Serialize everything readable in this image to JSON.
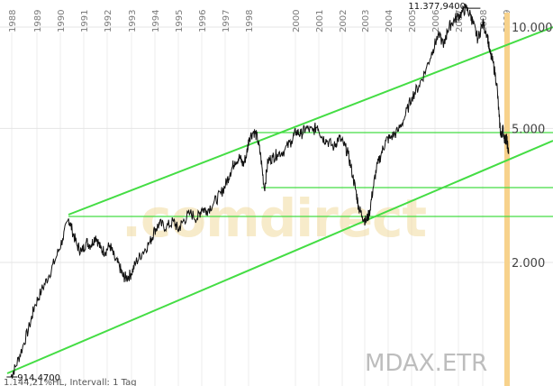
{
  "chart_data": {
    "type": "line",
    "symbol": "MDAX.ETR",
    "watermark": ".comdirect",
    "footer": "1.144,21%HL, Intervall: 1 Tag",
    "x_years": [
      "1988",
      "1989",
      "1990",
      "1991",
      "1992",
      "1993",
      "1994",
      "1995",
      "1996",
      "1997",
      "1998",
      "2000",
      "2001",
      "2002",
      "2003",
      "2004",
      "2005",
      "2006",
      "2007",
      "2008",
      "2009"
    ],
    "y_ticks": [
      {
        "value": 10000,
        "label": "10.000"
      },
      {
        "value": 5000,
        "label": "5.000"
      },
      {
        "value": 2000,
        "label": "2.000"
      }
    ],
    "y_scale": "log",
    "annotations": [
      {
        "label": "11.377,9400",
        "x": 2007.6,
        "y": 11378
      },
      {
        "label": "914,4700",
        "x": 1988.05,
        "y": 914
      }
    ],
    "series": [
      {
        "x": [
          1988.0,
          1988.2,
          1988.5,
          1988.8,
          1989.0,
          1989.3,
          1989.6,
          1989.9,
          1990.2,
          1990.45,
          1990.6,
          1990.8,
          1991.0,
          1991.2,
          1991.4,
          1991.6,
          1991.8,
          1992.0,
          1992.2,
          1992.4,
          1992.6,
          1992.75,
          1992.9,
          1993.1,
          1993.3,
          1993.6,
          1993.9,
          1994.1,
          1994.3,
          1994.6,
          1994.9,
          1995.1,
          1995.3,
          1995.6,
          1995.9,
          1996.1,
          1996.3,
          1996.6,
          1996.9,
          1997.1,
          1997.3,
          1997.5,
          1997.7,
          1997.85,
          1998.0,
          1998.1,
          1998.3,
          1998.45,
          1998.6,
          1998.75,
          1998.9,
          1999.1,
          1999.3,
          1999.6,
          1999.9,
          2000.1,
          2000.3,
          2000.5,
          2000.8,
          2001.0,
          2001.2,
          2001.4,
          2001.7,
          2001.9,
          2002.1,
          2002.3,
          2002.5,
          2002.65,
          2002.75,
          2002.9,
          2003.05,
          2003.2,
          2003.35,
          2003.5,
          2003.7,
          2003.9,
          2004.1,
          2004.4,
          2004.7,
          2005.0,
          2005.3,
          2005.6,
          2005.9,
          2006.1,
          2006.4,
          2006.5,
          2006.7,
          2006.9,
          2007.1,
          2007.3,
          2007.5,
          2007.6,
          2007.8,
          2008.0,
          2008.2,
          2008.3,
          2008.45,
          2008.6,
          2008.7,
          2008.78,
          2008.85,
          2008.95,
          2009.0,
          2009.05,
          2009.1
        ],
        "y": [
          914,
          980,
          1120,
          1300,
          1480,
          1650,
          1820,
          2050,
          2350,
          2700,
          2500,
          2250,
          2150,
          2300,
          2250,
          2400,
          2200,
          2150,
          2250,
          2050,
          1950,
          1820,
          1800,
          1850,
          2000,
          2150,
          2300,
          2500,
          2600,
          2550,
          2650,
          2500,
          2650,
          2800,
          2700,
          2900,
          2850,
          3000,
          3200,
          3400,
          3700,
          4000,
          4100,
          3900,
          4200,
          4700,
          4900,
          4700,
          4100,
          3300,
          4000,
          4100,
          4200,
          4300,
          4600,
          4900,
          4800,
          5000,
          4900,
          5100,
          4700,
          4600,
          4400,
          4700,
          4500,
          4200,
          3600,
          3200,
          2900,
          2750,
          2650,
          2800,
          3300,
          3800,
          4200,
          4600,
          4700,
          4900,
          5400,
          6200,
          6700,
          7500,
          8600,
          9400,
          8900,
          9800,
          10300,
          10700,
          11000,
          11378,
          10800,
          10200,
          9200,
          10300,
          9500,
          8400,
          7800,
          6800,
          5400,
          4700,
          5000,
          4600,
          4700,
          4500,
          4200
        ],
        "color": "#111111"
      }
    ]
  }
}
